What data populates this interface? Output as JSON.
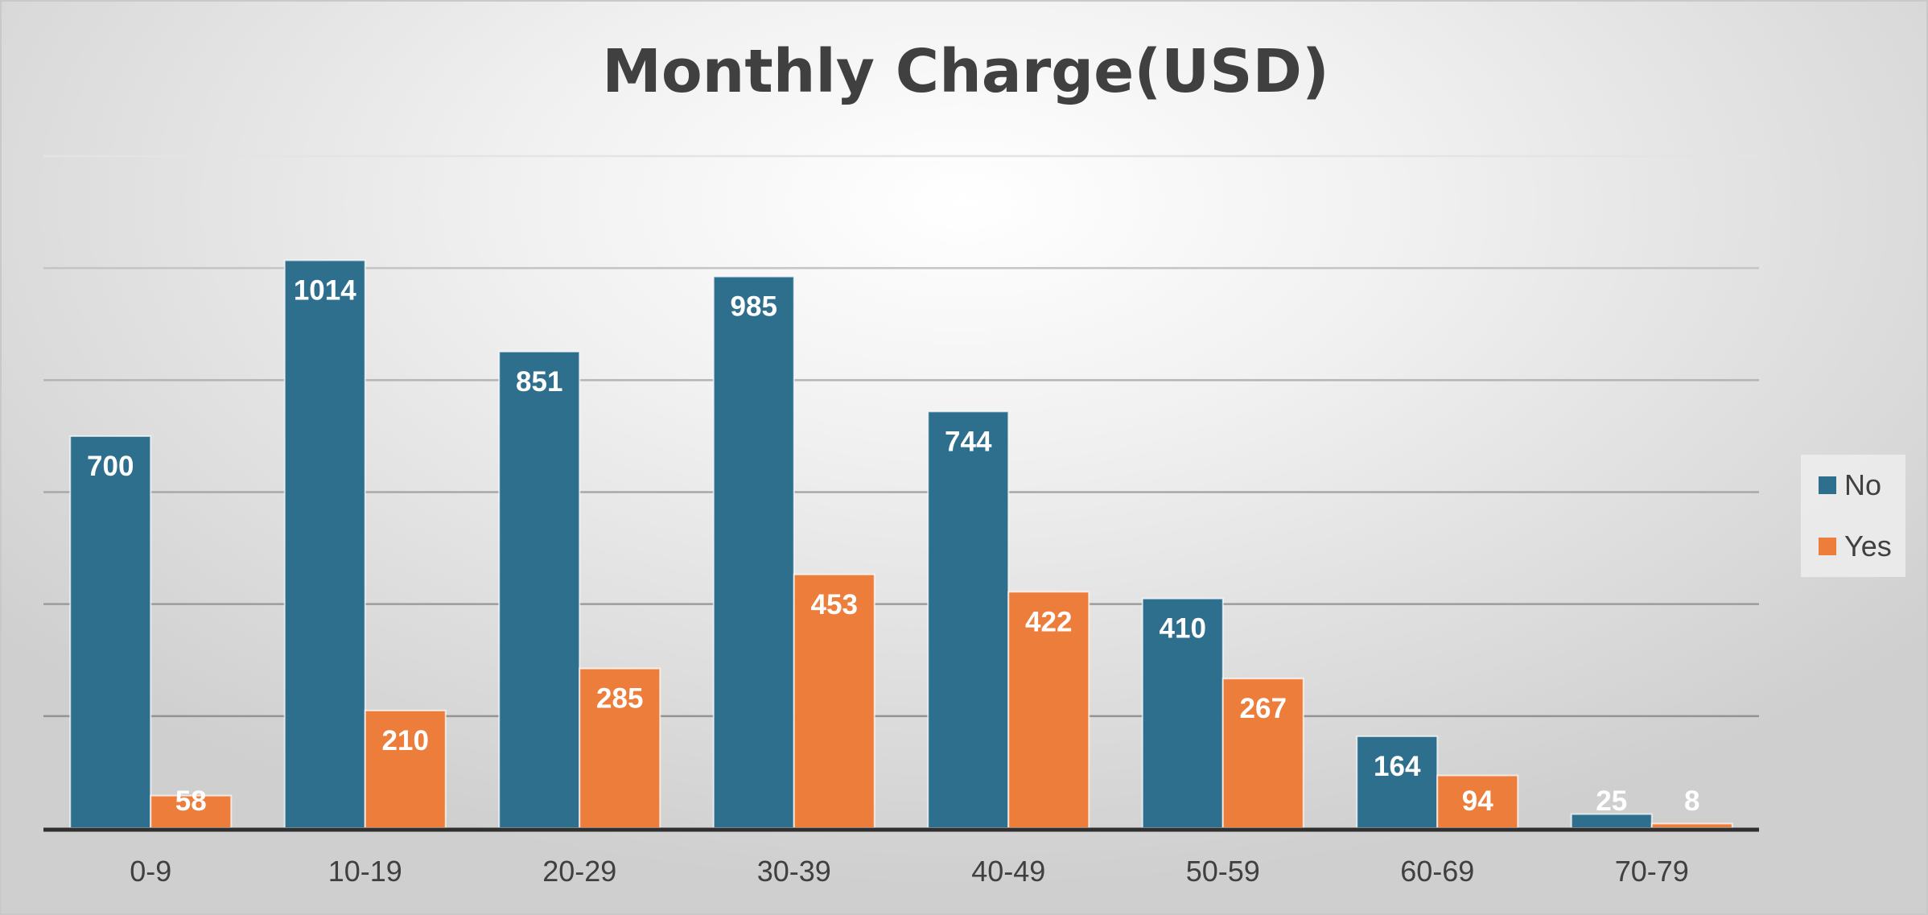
{
  "chart_data": {
    "type": "bar",
    "title": "Monthly Charge(USD)",
    "xlabel": "",
    "ylabel": "",
    "categories": [
      "0-9",
      "10-19",
      "20-29",
      "30-39",
      "40-49",
      "50-59",
      "60-69",
      "70-79"
    ],
    "series": [
      {
        "name": "No",
        "color": "#2e6f8e",
        "values": [
          700,
          1014,
          851,
          985,
          744,
          410,
          164,
          25
        ]
      },
      {
        "name": "Yes",
        "color": "#ed7d3a",
        "values": [
          58,
          210,
          285,
          453,
          422,
          267,
          94,
          8
        ]
      }
    ],
    "ylim": [
      0,
      1200
    ],
    "y_gridline_step": 200,
    "y_tick_labels_shown": false,
    "grid": true,
    "data_labels": true,
    "legend_position": "right"
  }
}
